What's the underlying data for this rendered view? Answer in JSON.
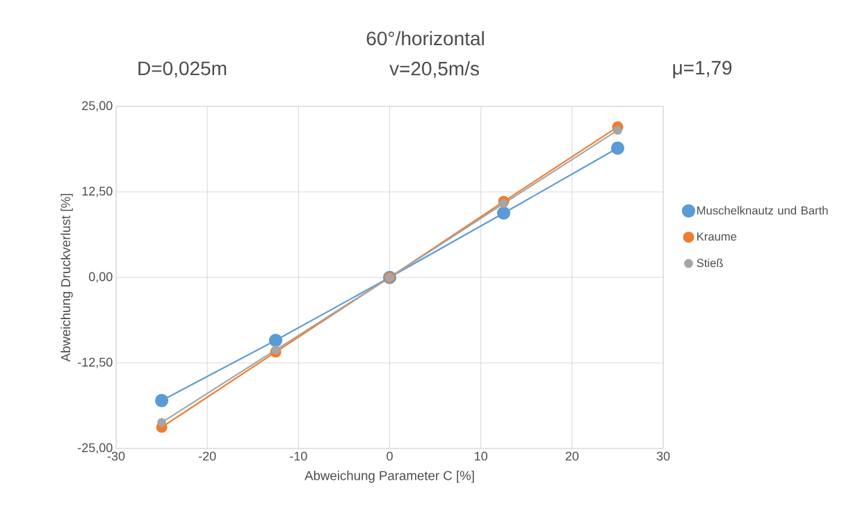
{
  "chart_data": {
    "type": "line",
    "title": "60°/horizontal",
    "annotations": [
      "D=0,025m",
      "v=20,5m/s",
      "μ=1,79"
    ],
    "xlabel": "Abweichung Parameter C [%]",
    "ylabel": "Abweichung Druckverlust [%]",
    "x": [
      -25,
      -12.5,
      0,
      12.5,
      25
    ],
    "series": [
      {
        "name": "Muschelknautz und Barth",
        "color": "#5b9bd5",
        "values": [
          -18.0,
          -9.2,
          0,
          9.4,
          18.9
        ]
      },
      {
        "name": "Kraume",
        "color": "#ed7d31",
        "values": [
          -21.9,
          -10.9,
          0,
          11.1,
          22.0
        ]
      },
      {
        "name": "Stieß",
        "color": "#a5a5a5",
        "values": [
          -21.2,
          -10.6,
          0,
          10.8,
          21.5
        ]
      }
    ],
    "xlim": [
      -30,
      30
    ],
    "xticks": [
      -30,
      -20,
      -10,
      0,
      10,
      20,
      30
    ],
    "ylim": [
      -25,
      25
    ],
    "yticks": [
      {
        "value": -25,
        "label": "-25,00"
      },
      {
        "value": -12.5,
        "label": "-12,50"
      },
      {
        "value": 0,
        "label": "0,00"
      },
      {
        "value": 12.5,
        "label": "12,50"
      },
      {
        "value": 25,
        "label": "25,00"
      }
    ],
    "grid": true,
    "legend": "right",
    "marker": "circle",
    "line_style": "solid"
  }
}
